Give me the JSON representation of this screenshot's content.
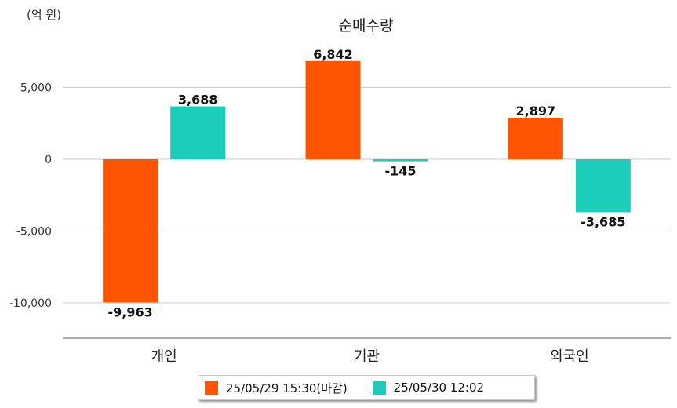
{
  "chart_data": {
    "type": "bar",
    "title": "순매수량",
    "unit_label": "(억 원)",
    "categories": [
      "개인",
      "기관",
      "외국인"
    ],
    "series": [
      {
        "name": "25/05/29 15:30(마감)",
        "color": "#FF5500",
        "values": [
          -9963,
          6842,
          2897
        ],
        "labels": [
          "-9,963",
          "6,842",
          "2,897"
        ]
      },
      {
        "name": "25/05/30 12:02",
        "color": "#1DCDBB",
        "values": [
          3688,
          -145,
          -3685
        ],
        "labels": [
          "3,688",
          "-145",
          "-3,685"
        ]
      }
    ],
    "yticks": [
      5000,
      0,
      -5000,
      -10000
    ],
    "ytick_labels": [
      "5,000",
      "0",
      "-5,000",
      "-10,000"
    ],
    "ylim": [
      -12500,
      7500
    ],
    "grid": true,
    "legend_position": "bottom"
  }
}
